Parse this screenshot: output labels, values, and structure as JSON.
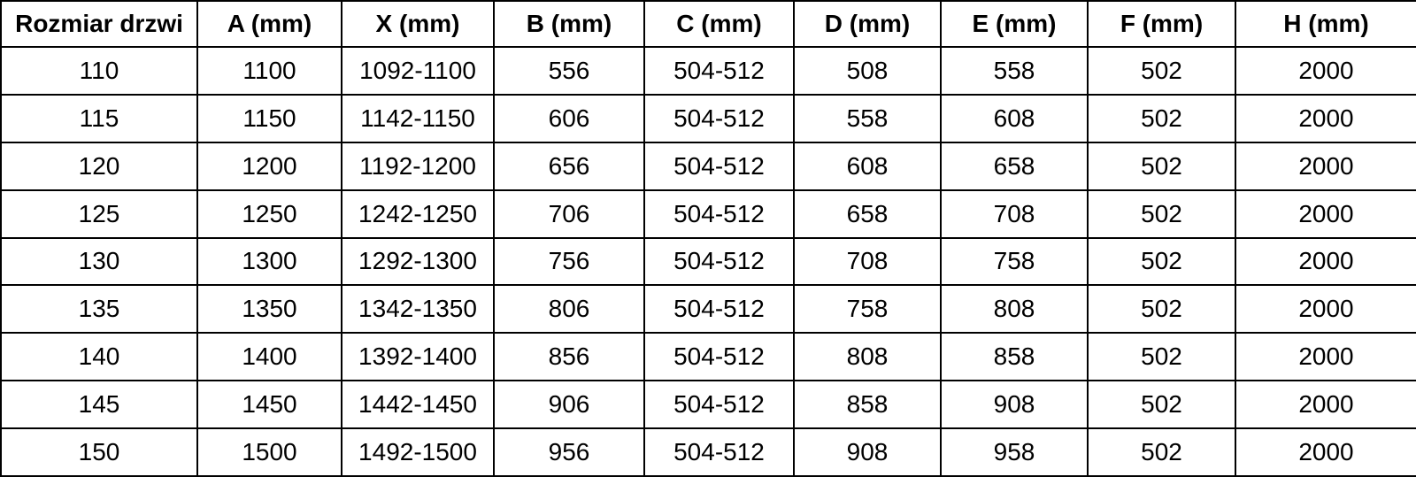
{
  "colors": {
    "border": "#000000",
    "text": "#000000",
    "background": "#ffffff"
  },
  "chart_data": {
    "type": "table",
    "title": "",
    "columns": [
      "Rozmiar drzwi",
      "A (mm)",
      "X (mm)",
      "B (mm)",
      "C (mm)",
      "D (mm)",
      "E (mm)",
      "F (mm)",
      "H (mm)"
    ],
    "rows": [
      [
        "110",
        "1100",
        "1092-1100",
        "556",
        "504-512",
        "508",
        "558",
        "502",
        "2000"
      ],
      [
        "115",
        "1150",
        "1142-1150",
        "606",
        "504-512",
        "558",
        "608",
        "502",
        "2000"
      ],
      [
        "120",
        "1200",
        "1192-1200",
        "656",
        "504-512",
        "608",
        "658",
        "502",
        "2000"
      ],
      [
        "125",
        "1250",
        "1242-1250",
        "706",
        "504-512",
        "658",
        "708",
        "502",
        "2000"
      ],
      [
        "130",
        "1300",
        "1292-1300",
        "756",
        "504-512",
        "708",
        "758",
        "502",
        "2000"
      ],
      [
        "135",
        "1350",
        "1342-1350",
        "806",
        "504-512",
        "758",
        "808",
        "502",
        "2000"
      ],
      [
        "140",
        "1400",
        "1392-1400",
        "856",
        "504-512",
        "808",
        "858",
        "502",
        "2000"
      ],
      [
        "145",
        "1450",
        "1442-1450",
        "906",
        "504-512",
        "858",
        "908",
        "502",
        "2000"
      ],
      [
        "150",
        "1500",
        "1492-1500",
        "956",
        "504-512",
        "908",
        "958",
        "502",
        "2000"
      ]
    ]
  }
}
